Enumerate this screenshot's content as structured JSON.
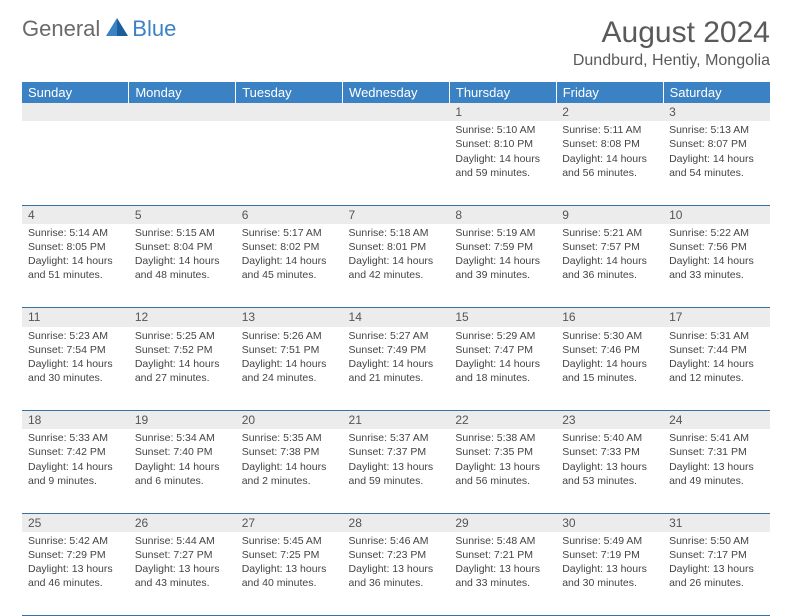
{
  "logo": {
    "text1": "General",
    "text2": "Blue"
  },
  "title": "August 2024",
  "location": "Dundburd, Hentiy, Mongolia",
  "colors": {
    "header_bg": "#3b82c4",
    "header_text": "#ffffff",
    "daynum_bg": "#ececec",
    "rule": "#3b6fa0",
    "body_text": "#444444"
  },
  "day_headers": [
    "Sunday",
    "Monday",
    "Tuesday",
    "Wednesday",
    "Thursday",
    "Friday",
    "Saturday"
  ],
  "weeks": [
    [
      null,
      null,
      null,
      null,
      {
        "n": "1",
        "sr": "5:10 AM",
        "ss": "8:10 PM",
        "dl": "14 hours and 59 minutes."
      },
      {
        "n": "2",
        "sr": "5:11 AM",
        "ss": "8:08 PM",
        "dl": "14 hours and 56 minutes."
      },
      {
        "n": "3",
        "sr": "5:13 AM",
        "ss": "8:07 PM",
        "dl": "14 hours and 54 minutes."
      }
    ],
    [
      {
        "n": "4",
        "sr": "5:14 AM",
        "ss": "8:05 PM",
        "dl": "14 hours and 51 minutes."
      },
      {
        "n": "5",
        "sr": "5:15 AM",
        "ss": "8:04 PM",
        "dl": "14 hours and 48 minutes."
      },
      {
        "n": "6",
        "sr": "5:17 AM",
        "ss": "8:02 PM",
        "dl": "14 hours and 45 minutes."
      },
      {
        "n": "7",
        "sr": "5:18 AM",
        "ss": "8:01 PM",
        "dl": "14 hours and 42 minutes."
      },
      {
        "n": "8",
        "sr": "5:19 AM",
        "ss": "7:59 PM",
        "dl": "14 hours and 39 minutes."
      },
      {
        "n": "9",
        "sr": "5:21 AM",
        "ss": "7:57 PM",
        "dl": "14 hours and 36 minutes."
      },
      {
        "n": "10",
        "sr": "5:22 AM",
        "ss": "7:56 PM",
        "dl": "14 hours and 33 minutes."
      }
    ],
    [
      {
        "n": "11",
        "sr": "5:23 AM",
        "ss": "7:54 PM",
        "dl": "14 hours and 30 minutes."
      },
      {
        "n": "12",
        "sr": "5:25 AM",
        "ss": "7:52 PM",
        "dl": "14 hours and 27 minutes."
      },
      {
        "n": "13",
        "sr": "5:26 AM",
        "ss": "7:51 PM",
        "dl": "14 hours and 24 minutes."
      },
      {
        "n": "14",
        "sr": "5:27 AM",
        "ss": "7:49 PM",
        "dl": "14 hours and 21 minutes."
      },
      {
        "n": "15",
        "sr": "5:29 AM",
        "ss": "7:47 PM",
        "dl": "14 hours and 18 minutes."
      },
      {
        "n": "16",
        "sr": "5:30 AM",
        "ss": "7:46 PM",
        "dl": "14 hours and 15 minutes."
      },
      {
        "n": "17",
        "sr": "5:31 AM",
        "ss": "7:44 PM",
        "dl": "14 hours and 12 minutes."
      }
    ],
    [
      {
        "n": "18",
        "sr": "5:33 AM",
        "ss": "7:42 PM",
        "dl": "14 hours and 9 minutes."
      },
      {
        "n": "19",
        "sr": "5:34 AM",
        "ss": "7:40 PM",
        "dl": "14 hours and 6 minutes."
      },
      {
        "n": "20",
        "sr": "5:35 AM",
        "ss": "7:38 PM",
        "dl": "14 hours and 2 minutes."
      },
      {
        "n": "21",
        "sr": "5:37 AM",
        "ss": "7:37 PM",
        "dl": "13 hours and 59 minutes."
      },
      {
        "n": "22",
        "sr": "5:38 AM",
        "ss": "7:35 PM",
        "dl": "13 hours and 56 minutes."
      },
      {
        "n": "23",
        "sr": "5:40 AM",
        "ss": "7:33 PM",
        "dl": "13 hours and 53 minutes."
      },
      {
        "n": "24",
        "sr": "5:41 AM",
        "ss": "7:31 PM",
        "dl": "13 hours and 49 minutes."
      }
    ],
    [
      {
        "n": "25",
        "sr": "5:42 AM",
        "ss": "7:29 PM",
        "dl": "13 hours and 46 minutes."
      },
      {
        "n": "26",
        "sr": "5:44 AM",
        "ss": "7:27 PM",
        "dl": "13 hours and 43 minutes."
      },
      {
        "n": "27",
        "sr": "5:45 AM",
        "ss": "7:25 PM",
        "dl": "13 hours and 40 minutes."
      },
      {
        "n": "28",
        "sr": "5:46 AM",
        "ss": "7:23 PM",
        "dl": "13 hours and 36 minutes."
      },
      {
        "n": "29",
        "sr": "5:48 AM",
        "ss": "7:21 PM",
        "dl": "13 hours and 33 minutes."
      },
      {
        "n": "30",
        "sr": "5:49 AM",
        "ss": "7:19 PM",
        "dl": "13 hours and 30 minutes."
      },
      {
        "n": "31",
        "sr": "5:50 AM",
        "ss": "7:17 PM",
        "dl": "13 hours and 26 minutes."
      }
    ]
  ],
  "labels": {
    "sunrise": "Sunrise: ",
    "sunset": "Sunset: ",
    "daylight": "Daylight: "
  }
}
